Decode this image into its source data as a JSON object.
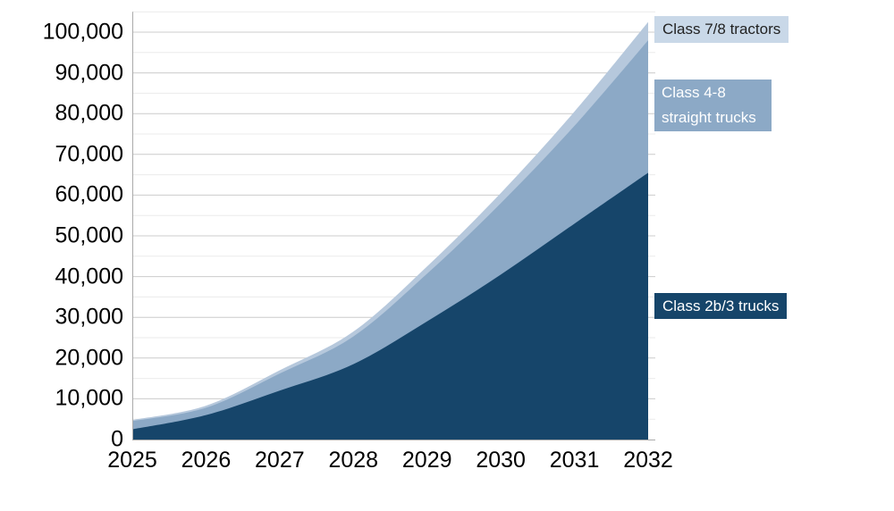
{
  "chart_data": {
    "type": "area",
    "stacked": true,
    "title": "",
    "xlabel": "",
    "ylabel": "",
    "x": [
      2025,
      2026,
      2027,
      2028,
      2029,
      2030,
      2031,
      2032
    ],
    "x_tick_labels": [
      "2025",
      "2026",
      "2027",
      "2028",
      "2029",
      "2030",
      "2031",
      "2032"
    ],
    "series": [
      {
        "name": "Class 2b/3 trucks",
        "color": "#16456A",
        "values": [
          2500,
          6000,
          12000,
          18500,
          29000,
          40500,
          53000,
          65500
        ]
      },
      {
        "name": "Class 4-8 straight trucks",
        "color": "#8CA9C6",
        "values": [
          2000,
          1800,
          4200,
          6800,
          11700,
          17500,
          24000,
          32500
        ]
      },
      {
        "name": "Class 7/8 tractors",
        "color": "#B6C8DC",
        "values": [
          300,
          500,
          800,
          1200,
          1800,
          2500,
          3500,
          4500
        ]
      }
    ],
    "stacked_totals": [
      4800,
      8300,
      17000,
      26500,
      42500,
      60500,
      80500,
      102500
    ],
    "ylim": [
      0,
      105000
    ],
    "y_major_step": 10000,
    "y_minor_step": 5000,
    "y_tick_labels": [
      "0",
      "10,000",
      "20,000",
      "30,000",
      "40,000",
      "50,000",
      "60,000",
      "70,000",
      "80,000",
      "90,000",
      "100,000"
    ],
    "grid": "horizontal-major-and-minor",
    "legend_position": "right-callout-labels"
  },
  "legend": [
    {
      "label": "Class 7/8 tractors",
      "bg": "#C9D8E8",
      "text_color": "#222222"
    },
    {
      "label": "Class 4-8 straight trucks",
      "bg": "#8CA9C6",
      "text_color": "#FFFFFF"
    },
    {
      "label": "Class 2b/3 trucks",
      "bg": "#16456A",
      "text_color": "#FFFFFF"
    }
  ],
  "colors": {
    "background": "#FFFFFF",
    "grid_major": "#CCCCCC",
    "grid_minor": "#EBEBEB",
    "axis_line": "#AAAAAA",
    "tick_text": "#000000"
  }
}
